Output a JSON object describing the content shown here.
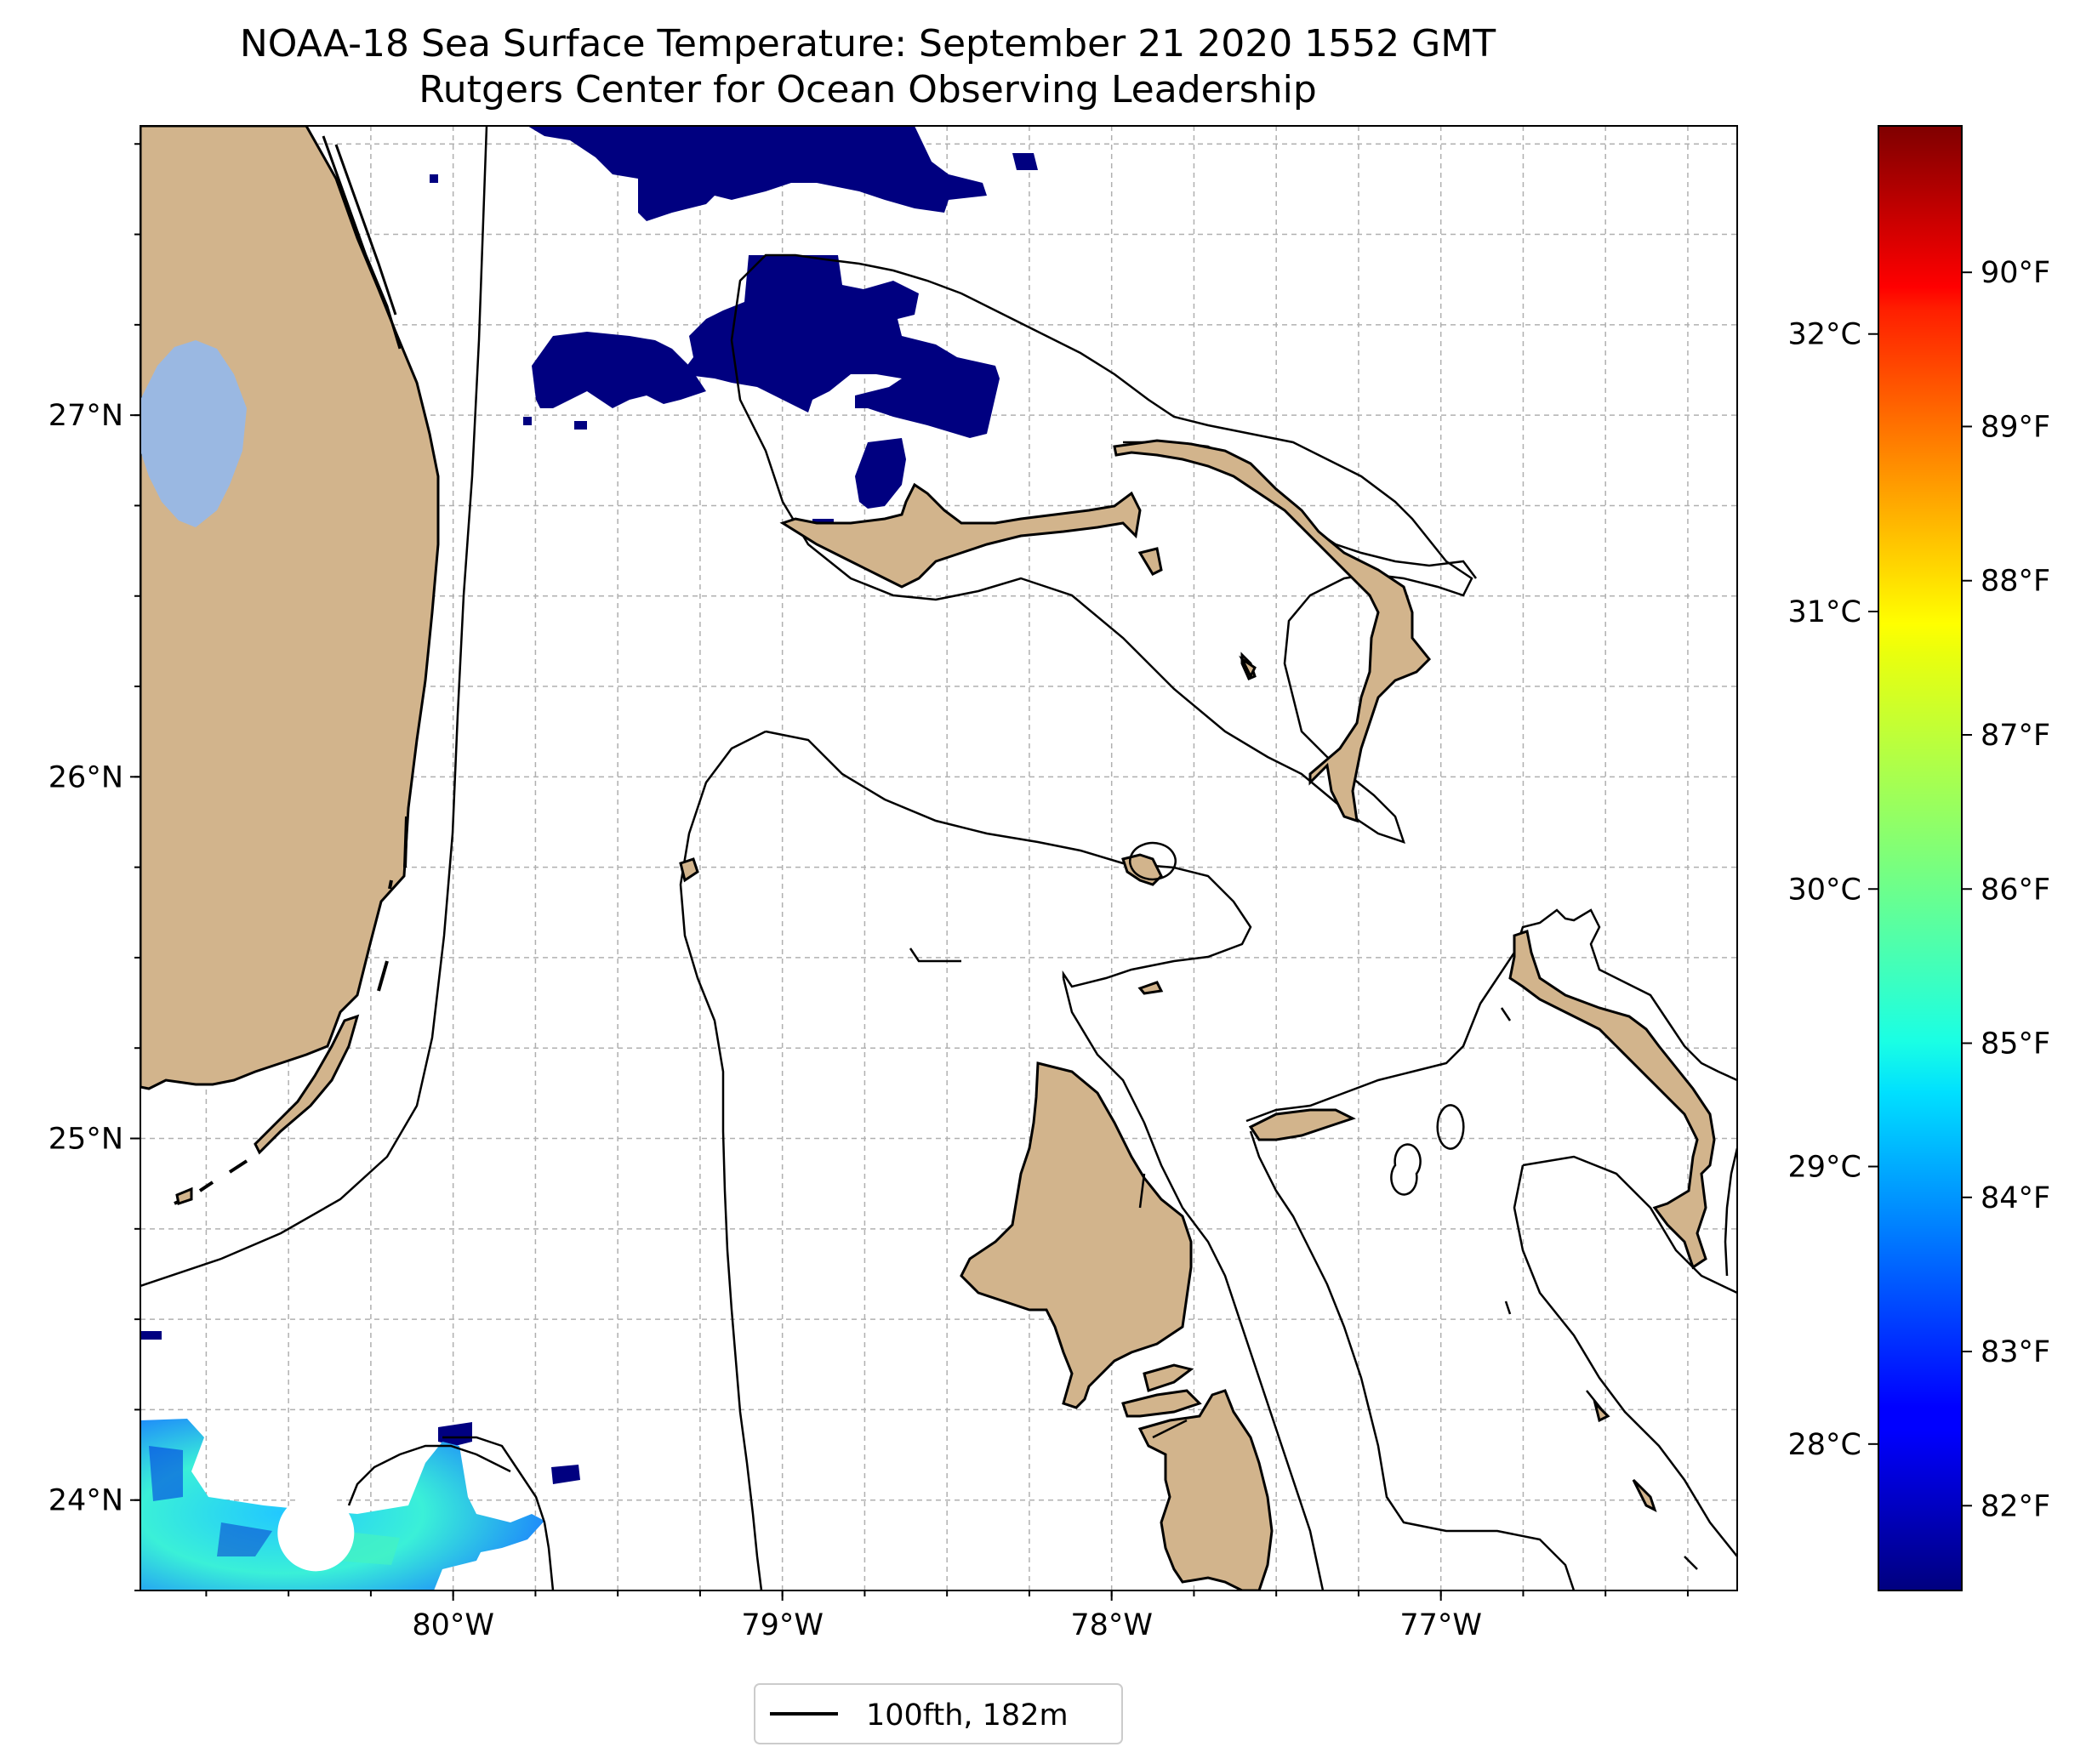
{
  "title": {
    "line1": "NOAA-18 Sea Surface Temperature: September 21 2020 1552 GMT",
    "line2": "Rutgers Center for Ocean Observing Leadership"
  },
  "map": {
    "lon_range": [
      -80.95,
      -76.1
    ],
    "lat_range": [
      23.75,
      27.8
    ],
    "lon_ticks": [
      {
        "value": -80,
        "label": "80°W"
      },
      {
        "value": -79,
        "label": "79°W"
      },
      {
        "value": -78,
        "label": "78°W"
      },
      {
        "value": -77,
        "label": "77°W"
      }
    ],
    "lat_ticks": [
      {
        "value": 24,
        "label": "24°N"
      },
      {
        "value": 25,
        "label": "25°N"
      },
      {
        "value": 26,
        "label": "26°N"
      },
      {
        "value": 27,
        "label": "27°N"
      }
    ],
    "gridlines": "dashed",
    "land_color": "#d2b48c",
    "lake_color": "#9ab8e2",
    "coastline_color": "#000000"
  },
  "legend": {
    "entries": [
      {
        "label": "100fth, 182m",
        "style": "solid black line"
      }
    ],
    "placement": "bottom-center"
  },
  "colorbar": {
    "colormap": "jet",
    "celsius_ticks": [
      {
        "value": 28,
        "label": "28°C"
      },
      {
        "value": 29,
        "label": "29°C"
      },
      {
        "value": 30,
        "label": "30°C"
      },
      {
        "value": 31,
        "label": "31°C"
      },
      {
        "value": 32,
        "label": "32°C"
      }
    ],
    "fahrenheit_ticks": [
      {
        "value": 82,
        "label": "82°F"
      },
      {
        "value": 83,
        "label": "83°F"
      },
      {
        "value": 84,
        "label": "84°F"
      },
      {
        "value": 85,
        "label": "85°F"
      },
      {
        "value": 86,
        "label": "86°F"
      },
      {
        "value": 87,
        "label": "87°F"
      },
      {
        "value": 88,
        "label": "88°F"
      },
      {
        "value": 89,
        "label": "89°F"
      },
      {
        "value": 90,
        "label": "90°F"
      }
    ]
  }
}
